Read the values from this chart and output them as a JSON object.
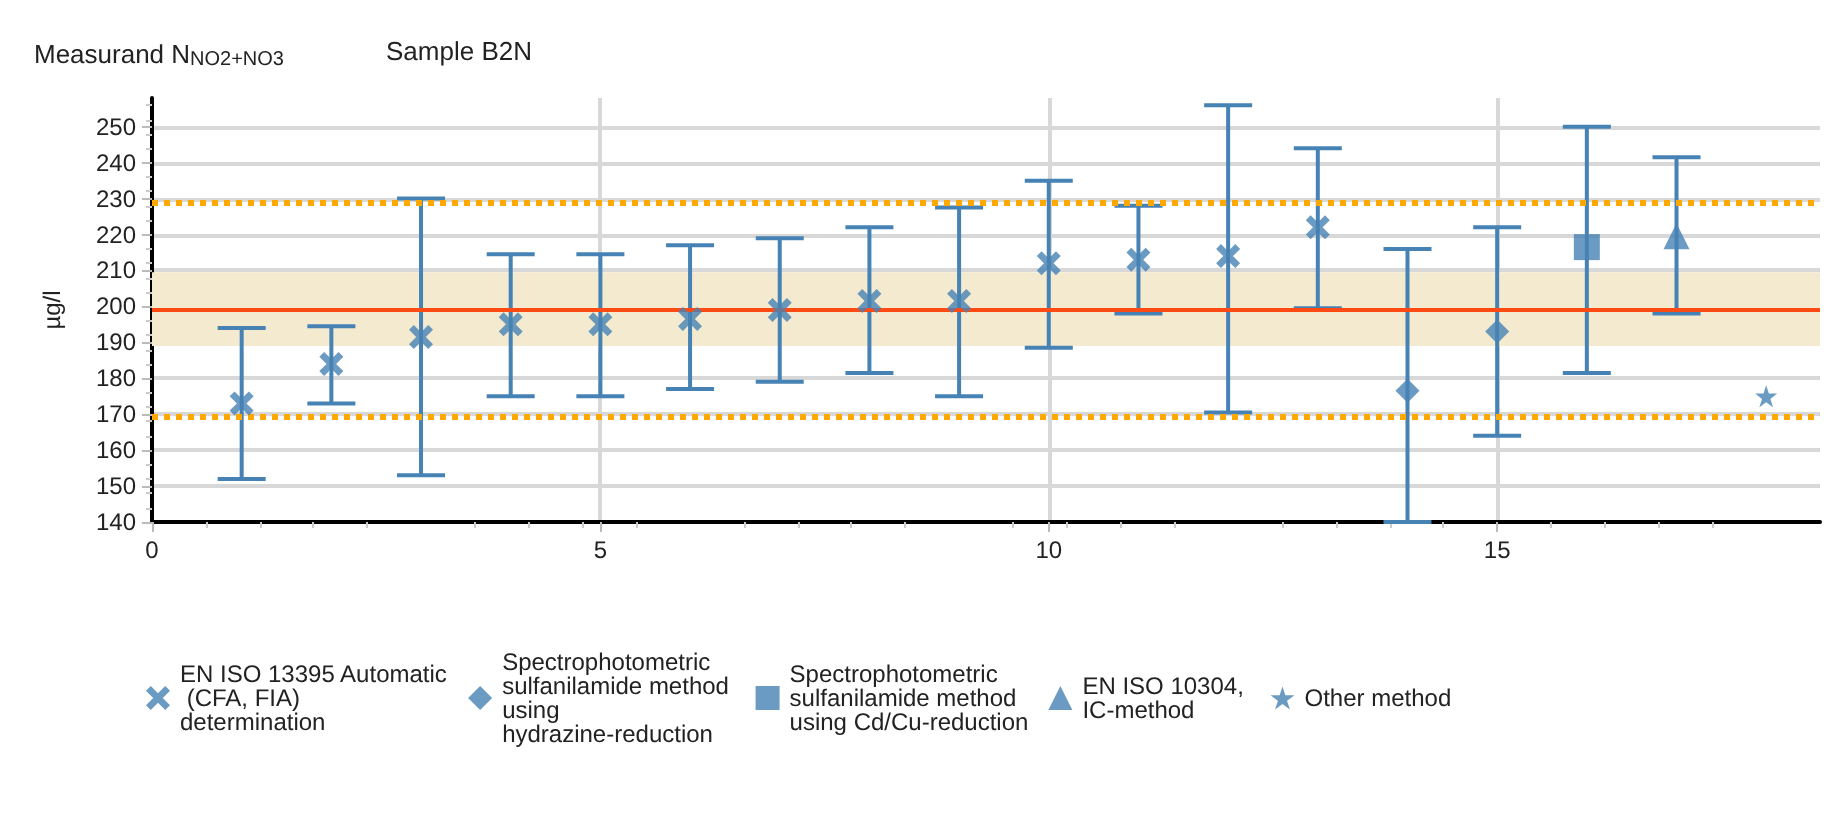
{
  "chart_data": {
    "type": "scatter",
    "title": "Measurand N$_{NO2+NO3}$",
    "subtitle": "Sample B2N",
    "ylabel": "µg/l",
    "xlim": [
      0,
      18.6
    ],
    "xticks": [
      0,
      5,
      10,
      15
    ],
    "ylim": [
      140,
      258
    ],
    "yticks": [
      140,
      150,
      160,
      170,
      180,
      190,
      200,
      210,
      220,
      230,
      240,
      250
    ],
    "grid": true,
    "legend": "bottom",
    "series": [
      {
        "name": "EN ISO 13395 Automatic (CFA, FIA) determination",
        "color": "#4682b4",
        "marker": "cross",
        "x": [
          1,
          2,
          3,
          4,
          5,
          6,
          7,
          8,
          9,
          10,
          11,
          12,
          13
        ],
        "values": [
          173,
          184,
          191.5,
          195,
          195,
          196.5,
          199,
          201.5,
          201.5,
          212,
          213,
          214,
          222
        ],
        "errors": [
          [
            152,
            194
          ],
          [
            173,
            194.5
          ],
          [
            153,
            230
          ],
          [
            175,
            214.5
          ],
          [
            175,
            214.5
          ],
          [
            177,
            217
          ],
          [
            179,
            219
          ],
          [
            181.5,
            222
          ],
          [
            175,
            227.5
          ],
          [
            188.5,
            235
          ],
          [
            198,
            228
          ],
          [
            170.5,
            256
          ],
          [
            199.5,
            244
          ]
        ]
      },
      {
        "name": "Spectrophotometric sulfanilamide method using hydrazine-reduction",
        "color": "#4682b4",
        "marker": "diamond",
        "x": [
          14,
          15
        ],
        "values": [
          176.5,
          193
        ],
        "errors": [
          [
            140,
            216
          ],
          [
            164,
            222
          ]
        ]
      },
      {
        "name": "Spectrophotometric sulfanilamide method using Cd/Cu-reduction",
        "color": "#4682b4",
        "marker": "square",
        "x": [
          16
        ],
        "values": [
          216.5
        ],
        "errors": [
          [
            181.5,
            250
          ]
        ]
      },
      {
        "name": "EN ISO 10304, IC-method",
        "color": "#4682b4",
        "marker": "triangle",
        "x": [
          17
        ],
        "values": [
          219.5
        ],
        "errors": [
          [
            198,
            241.5
          ]
        ]
      },
      {
        "name": "Other method",
        "color": "#4682b4",
        "marker": "star",
        "x": [
          18
        ],
        "values": [
          175
        ]
      }
    ],
    "ref_lines": [
      {
        "axis": "y",
        "value": 199,
        "label": null,
        "color": "#ff4a14",
        "line_style": "solid"
      },
      {
        "axis": "y",
        "value": 229,
        "label": null,
        "color": "#ffa800",
        "line_style": "dotted"
      },
      {
        "axis": "y",
        "value": 169.5,
        "label": null,
        "color": "#ffa800",
        "line_style": "dotted"
      }
    ],
    "bands": [
      {
        "axis": "y",
        "from": 189,
        "to": 209.5,
        "label": null,
        "color": "#f3ead0"
      }
    ]
  }
}
